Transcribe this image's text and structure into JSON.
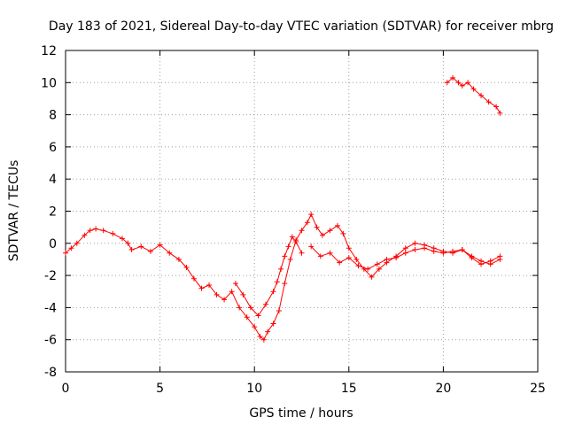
{
  "chart_data": {
    "type": "scatter",
    "title": "Day 183 of 2021, Sidereal Day-to-day VTEC variation (SDTVAR) for receiver mbrg",
    "xlabel": "GPS time / hours",
    "ylabel": "SDTVAR / TECUs",
    "xlim": [
      0,
      25
    ],
    "ylim": [
      -8,
      12
    ],
    "xticks": [
      0,
      5,
      10,
      15,
      20,
      25
    ],
    "yticks": [
      -8,
      -6,
      -4,
      -2,
      0,
      2,
      4,
      6,
      8,
      10,
      12
    ],
    "grid": true,
    "marker": "+",
    "color": "#ff0000",
    "series": [
      {
        "name": "main",
        "x": [
          0.0,
          0.3,
          0.6,
          1.0,
          1.3,
          1.6,
          2.0,
          2.5,
          3.0,
          3.3,
          3.5,
          4.0,
          4.5,
          5.0,
          5.5,
          6.0,
          6.4,
          6.8,
          7.2,
          7.6,
          8.0,
          8.4,
          8.8,
          9.2,
          9.6,
          10.0,
          10.3,
          10.5,
          10.7,
          11.0,
          11.3,
          11.6,
          11.9,
          12.2,
          12.5,
          12.8,
          13.0,
          13.3,
          13.6,
          14.0,
          14.4,
          14.7,
          15.0,
          15.4,
          15.8,
          16.2,
          16.6,
          17.0,
          17.5,
          18.0,
          18.5,
          19.0,
          19.5,
          20.0,
          20.5,
          21.0,
          21.5,
          22.0,
          22.5,
          23.0
        ],
        "y": [
          -0.6,
          -0.3,
          0.0,
          0.5,
          0.8,
          0.9,
          0.8,
          0.6,
          0.3,
          0.0,
          -0.4,
          -0.2,
          -0.5,
          -0.1,
          -0.6,
          -1.0,
          -1.5,
          -2.2,
          -2.8,
          -2.6,
          -3.2,
          -3.5,
          -3.0,
          -4.0,
          -4.6,
          -5.2,
          -5.8,
          -6.0,
          -5.5,
          -5.0,
          -4.2,
          -2.5,
          -1.0,
          0.2,
          0.8,
          1.3,
          1.8,
          1.0,
          0.5,
          0.8,
          1.1,
          0.6,
          -0.3,
          -1.0,
          -1.6,
          -2.1,
          -1.6,
          -1.2,
          -0.8,
          -0.3,
          0.0,
          -0.1,
          -0.3,
          -0.5,
          -0.6,
          -0.4,
          -0.8,
          -1.1,
          -1.3,
          -1.0
        ]
      },
      {
        "name": "recovery-branch",
        "x": [
          9.0,
          9.4,
          9.8,
          10.2,
          10.6,
          11.0,
          11.2,
          11.4,
          11.6,
          11.8,
          12.0,
          12.2,
          12.5
        ],
        "y": [
          -2.5,
          -3.2,
          -4.0,
          -4.5,
          -3.8,
          -3.0,
          -2.4,
          -1.6,
          -0.8,
          -0.2,
          0.4,
          0.1,
          -0.6
        ]
      },
      {
        "name": "lower-band",
        "x": [
          13.0,
          13.5,
          14.0,
          14.5,
          15.0,
          15.5,
          16.0,
          16.5,
          17.0,
          17.5,
          18.0,
          18.5,
          19.0,
          19.5,
          20.0,
          20.5,
          21.0,
          21.5,
          22.0,
          22.5,
          23.0
        ],
        "y": [
          -0.2,
          -0.8,
          -0.6,
          -1.2,
          -0.9,
          -1.4,
          -1.6,
          -1.3,
          -1.0,
          -0.9,
          -0.6,
          -0.4,
          -0.3,
          -0.5,
          -0.6,
          -0.5,
          -0.4,
          -0.9,
          -1.3,
          -1.1,
          -0.8
        ]
      },
      {
        "name": "late-segment",
        "x": [
          20.2,
          20.5,
          20.8,
          21.0,
          21.3,
          21.6,
          22.0,
          22.4,
          22.8,
          23.0
        ],
        "y": [
          10.0,
          10.3,
          10.0,
          9.8,
          10.0,
          9.6,
          9.2,
          8.8,
          8.5,
          8.1
        ]
      }
    ]
  }
}
